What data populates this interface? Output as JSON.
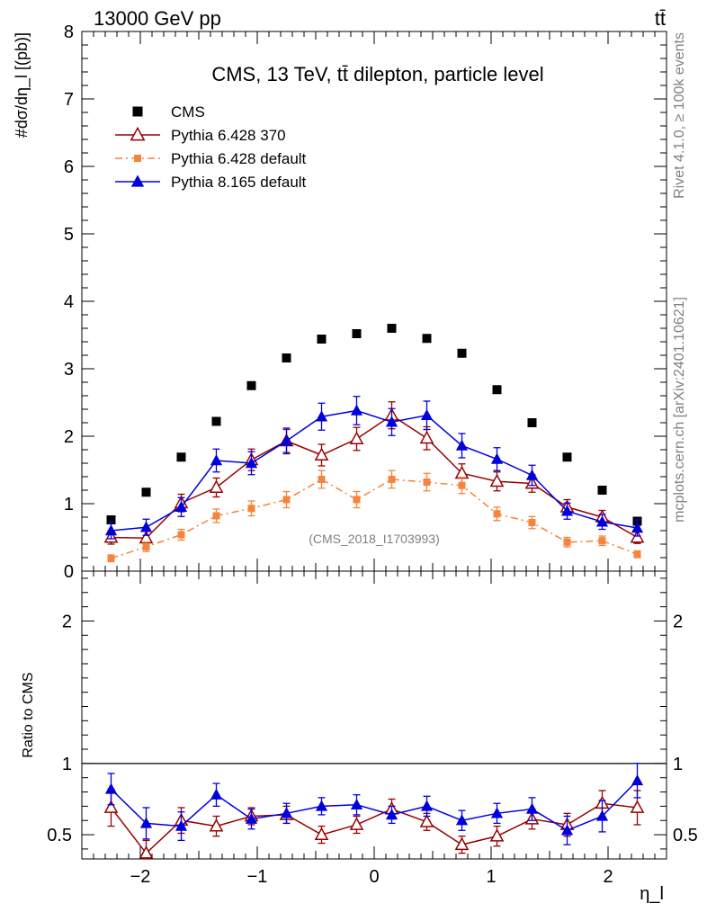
{
  "header": {
    "left": "13000 GeV pp",
    "right": "tt̄",
    "title": "CMS, 13 TeV, tt̄ dilepton, particle level",
    "watermark": "(CMS_2018_I1703993)",
    "side_rivet": "Rivet 4.1.0, ≥ 100k events",
    "side_mcplots": "mcplots.cern.ch [arXiv:2401.10621]"
  },
  "chart_data": [
    {
      "type": "scatter",
      "panel": "main",
      "ylabel": "#dσ/dη_l [(pb)]",
      "xlabel": "η_l",
      "xlim": [
        -2.5,
        2.5
      ],
      "ylim": [
        0,
        8
      ],
      "x": [
        -2.25,
        -1.95,
        -1.65,
        -1.35,
        -1.05,
        -0.75,
        -0.45,
        -0.15,
        0.15,
        0.45,
        0.75,
        1.05,
        1.35,
        1.65,
        1.95,
        2.25
      ],
      "xticks": [
        -2,
        -1,
        0,
        1,
        2
      ],
      "xtick_labels": [
        "−2",
        "−1",
        "0",
        "1",
        "2"
      ],
      "yticks": [
        0,
        1,
        2,
        3,
        4,
        5,
        6,
        7,
        8
      ],
      "ytick_labels": [
        "0",
        "1",
        "2",
        "3",
        "4",
        "5",
        "6",
        "7",
        "8"
      ],
      "series": [
        {
          "name": "CMS",
          "color": "#000000",
          "marker": "square",
          "line": "none",
          "values": [
            0.76,
            1.17,
            1.69,
            2.22,
            2.75,
            3.16,
            3.44,
            3.52,
            3.6,
            3.45,
            3.23,
            2.69,
            2.2,
            1.69,
            1.2,
            0.74
          ],
          "errors": [
            0,
            0,
            0,
            0,
            0,
            0,
            0,
            0,
            0,
            0,
            0,
            0,
            0,
            0,
            0,
            0
          ]
        },
        {
          "name": "Pythia 6.428 370",
          "color": "#990000",
          "marker": "open-triangle",
          "line": "solid",
          "values": [
            0.5,
            0.49,
            1.01,
            1.24,
            1.65,
            1.93,
            1.72,
            1.96,
            2.31,
            1.97,
            1.45,
            1.33,
            1.3,
            0.95,
            0.8,
            0.5
          ],
          "errors": [
            0.1,
            0.1,
            0.13,
            0.14,
            0.16,
            0.17,
            0.16,
            0.17,
            0.2,
            0.17,
            0.14,
            0.14,
            0.13,
            0.11,
            0.1,
            0.09
          ]
        },
        {
          "name": "Pythia 6.428 default",
          "color": "#f5843c",
          "marker": "square",
          "line": "dashdot",
          "values": [
            0.19,
            0.36,
            0.54,
            0.82,
            0.93,
            1.06,
            1.36,
            1.06,
            1.36,
            1.32,
            1.27,
            0.85,
            0.72,
            0.43,
            0.45,
            0.25
          ],
          "errors": [
            0.05,
            0.07,
            0.08,
            0.1,
            0.11,
            0.12,
            0.13,
            0.12,
            0.13,
            0.13,
            0.12,
            0.1,
            0.09,
            0.07,
            0.07,
            0.05
          ]
        },
        {
          "name": "Pythia 8.165 default",
          "color": "#0000dd",
          "marker": "triangle",
          "line": "solid",
          "values": [
            0.6,
            0.65,
            0.95,
            1.64,
            1.6,
            1.93,
            2.29,
            2.38,
            2.21,
            2.31,
            1.86,
            1.66,
            1.42,
            0.89,
            0.73,
            0.64
          ],
          "errors": [
            0.12,
            0.12,
            0.14,
            0.17,
            0.17,
            0.19,
            0.2,
            0.21,
            0.2,
            0.21,
            0.18,
            0.17,
            0.15,
            0.12,
            0.11,
            0.12
          ]
        }
      ]
    },
    {
      "type": "scatter",
      "panel": "ratio",
      "ylabel": "Ratio to CMS",
      "xlabel": "η_l",
      "xlim": [
        -2.5,
        2.5
      ],
      "ylim": [
        0.33,
        2.35
      ],
      "x": [
        -2.25,
        -1.95,
        -1.65,
        -1.35,
        -1.05,
        -0.75,
        -0.45,
        -0.15,
        0.15,
        0.45,
        0.75,
        1.05,
        1.35,
        1.65,
        1.95,
        2.25
      ],
      "yticks": [
        0.5,
        1,
        2
      ],
      "ytick_labels": [
        "0.5",
        "1",
        "2"
      ],
      "reference": 1,
      "series": [
        {
          "name": "Pythia 6.428 370",
          "color": "#990000",
          "marker": "open-triangle",
          "line": "solid",
          "values": [
            0.69,
            0.37,
            0.6,
            0.56,
            0.63,
            0.64,
            0.5,
            0.57,
            0.68,
            0.59,
            0.43,
            0.49,
            0.61,
            0.57,
            0.72,
            0.69
          ],
          "errors": [
            0.13,
            0.09,
            0.09,
            0.07,
            0.06,
            0.06,
            0.06,
            0.06,
            0.07,
            0.06,
            0.06,
            0.07,
            0.07,
            0.08,
            0.09,
            0.12
          ]
        },
        {
          "name": "Pythia 8.165 default",
          "color": "#0000dd",
          "marker": "triangle",
          "line": "solid",
          "values": [
            0.82,
            0.58,
            0.56,
            0.78,
            0.61,
            0.65,
            0.7,
            0.71,
            0.64,
            0.7,
            0.6,
            0.65,
            0.68,
            0.53,
            0.63,
            0.88
          ],
          "errors": [
            0.11,
            0.11,
            0.1,
            0.08,
            0.07,
            0.07,
            0.06,
            0.07,
            0.06,
            0.07,
            0.07,
            0.07,
            0.08,
            0.1,
            0.11,
            0.12
          ]
        }
      ]
    }
  ]
}
